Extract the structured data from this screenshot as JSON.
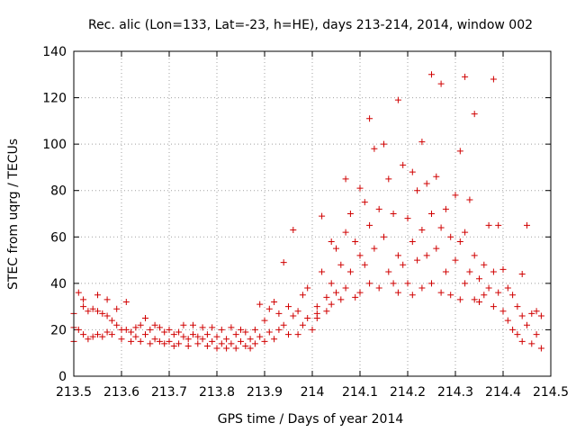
{
  "chart_data": {
    "type": "scatter",
    "title": "Rec. alic (Lon=133, Lat=-23, h=HE), days 213-214, 2014, window 002",
    "xlabel": "GPS time / Days of year 2014",
    "ylabel": "STEC from uqrg / TECUs",
    "xlim": [
      213.5,
      214.5
    ],
    "ylim": [
      0,
      140
    ],
    "xticks": [
      213.5,
      213.6,
      213.7,
      213.8,
      213.9,
      214,
      214.1,
      214.2,
      214.3,
      214.4,
      214.5
    ],
    "xtick_labels": [
      "213.5",
      "213.6",
      "213.7",
      "213.8",
      "213.9",
      "214",
      "214.1",
      "214.2",
      "214.3",
      "214.4",
      "214.5"
    ],
    "yticks": [
      0,
      20,
      40,
      60,
      80,
      100,
      120,
      140
    ],
    "ytick_labels": [
      "0",
      "20",
      "40",
      "60",
      "80",
      "100",
      "120",
      "140"
    ],
    "grid": true,
    "marker": "+",
    "marker_color": "#d00000",
    "series": [
      {
        "name": "STEC",
        "points": [
          [
            213.5,
            15
          ],
          [
            213.5,
            21
          ],
          [
            213.5,
            27
          ],
          [
            213.51,
            36
          ],
          [
            213.51,
            20
          ],
          [
            213.52,
            30
          ],
          [
            213.52,
            33
          ],
          [
            213.52,
            18
          ],
          [
            213.53,
            28
          ],
          [
            213.53,
            16
          ],
          [
            213.54,
            29
          ],
          [
            213.54,
            17
          ],
          [
            213.55,
            28
          ],
          [
            213.55,
            35
          ],
          [
            213.55,
            18
          ],
          [
            213.56,
            27
          ],
          [
            213.56,
            17
          ],
          [
            213.57,
            26
          ],
          [
            213.57,
            33
          ],
          [
            213.57,
            19
          ],
          [
            213.58,
            24
          ],
          [
            213.58,
            18
          ],
          [
            213.59,
            22
          ],
          [
            213.59,
            29
          ],
          [
            213.6,
            20
          ],
          [
            213.6,
            16
          ],
          [
            213.61,
            32
          ],
          [
            213.61,
            20
          ],
          [
            213.62,
            19
          ],
          [
            213.62,
            15
          ],
          [
            213.63,
            21
          ],
          [
            213.63,
            17
          ],
          [
            213.64,
            22
          ],
          [
            213.64,
            15
          ],
          [
            213.65,
            25
          ],
          [
            213.65,
            18
          ],
          [
            213.66,
            20
          ],
          [
            213.66,
            14
          ],
          [
            213.67,
            22
          ],
          [
            213.67,
            16
          ],
          [
            213.68,
            21
          ],
          [
            213.68,
            15
          ],
          [
            213.69,
            19
          ],
          [
            213.69,
            14
          ],
          [
            213.7,
            20
          ],
          [
            213.7,
            15
          ],
          [
            213.71,
            18
          ],
          [
            213.71,
            13
          ],
          [
            213.72,
            19
          ],
          [
            213.72,
            14
          ],
          [
            213.73,
            22
          ],
          [
            213.73,
            17
          ],
          [
            213.74,
            16
          ],
          [
            213.74,
            13
          ],
          [
            213.75,
            22
          ],
          [
            213.75,
            18
          ],
          [
            213.76,
            17
          ],
          [
            213.76,
            14
          ],
          [
            213.77,
            21
          ],
          [
            213.77,
            16
          ],
          [
            213.78,
            18
          ],
          [
            213.78,
            13
          ],
          [
            213.79,
            21
          ],
          [
            213.79,
            15
          ],
          [
            213.8,
            17
          ],
          [
            213.8,
            12
          ],
          [
            213.81,
            20
          ],
          [
            213.81,
            14
          ],
          [
            213.82,
            16
          ],
          [
            213.82,
            12
          ],
          [
            213.83,
            21
          ],
          [
            213.83,
            14
          ],
          [
            213.84,
            18
          ],
          [
            213.84,
            12
          ],
          [
            213.85,
            20
          ],
          [
            213.85,
            15
          ],
          [
            213.86,
            19
          ],
          [
            213.86,
            13
          ],
          [
            213.87,
            16
          ],
          [
            213.87,
            12
          ],
          [
            213.88,
            20
          ],
          [
            213.88,
            14
          ],
          [
            213.89,
            31
          ],
          [
            213.89,
            17
          ],
          [
            213.9,
            24
          ],
          [
            213.9,
            15
          ],
          [
            213.91,
            29
          ],
          [
            213.91,
            19
          ],
          [
            213.92,
            32
          ],
          [
            213.92,
            16
          ],
          [
            213.93,
            27
          ],
          [
            213.93,
            20
          ],
          [
            213.94,
            49
          ],
          [
            213.94,
            22
          ],
          [
            213.95,
            30
          ],
          [
            213.95,
            18
          ],
          [
            213.96,
            63
          ],
          [
            213.96,
            26
          ],
          [
            213.97,
            28
          ],
          [
            213.97,
            18
          ],
          [
            213.98,
            35
          ],
          [
            213.98,
            22
          ],
          [
            213.99,
            38
          ],
          [
            213.99,
            25
          ],
          [
            214.0,
            20
          ],
          [
            214.01,
            30
          ],
          [
            214.01,
            27
          ],
          [
            214.01,
            25
          ],
          [
            214.02,
            69
          ],
          [
            214.02,
            45
          ],
          [
            214.03,
            34
          ],
          [
            214.03,
            28
          ],
          [
            214.04,
            58
          ],
          [
            214.04,
            40
          ],
          [
            214.04,
            31
          ],
          [
            214.05,
            55
          ],
          [
            214.05,
            36
          ],
          [
            214.06,
            48
          ],
          [
            214.06,
            33
          ],
          [
            214.07,
            85
          ],
          [
            214.07,
            62
          ],
          [
            214.07,
            38
          ],
          [
            214.08,
            70
          ],
          [
            214.08,
            45
          ],
          [
            214.09,
            58
          ],
          [
            214.09,
            34
          ],
          [
            214.1,
            81
          ],
          [
            214.1,
            52
          ],
          [
            214.1,
            36
          ],
          [
            214.11,
            75
          ],
          [
            214.11,
            48
          ],
          [
            214.12,
            111
          ],
          [
            214.12,
            65
          ],
          [
            214.12,
            40
          ],
          [
            214.13,
            98
          ],
          [
            214.13,
            55
          ],
          [
            214.14,
            72
          ],
          [
            214.14,
            38
          ],
          [
            214.15,
            100
          ],
          [
            214.15,
            60
          ],
          [
            214.16,
            85
          ],
          [
            214.16,
            45
          ],
          [
            214.17,
            70
          ],
          [
            214.17,
            40
          ],
          [
            214.18,
            119
          ],
          [
            214.18,
            52
          ],
          [
            214.18,
            36
          ],
          [
            214.19,
            91
          ],
          [
            214.19,
            48
          ],
          [
            214.2,
            68
          ],
          [
            214.2,
            40
          ],
          [
            214.21,
            88
          ],
          [
            214.21,
            58
          ],
          [
            214.21,
            35
          ],
          [
            214.22,
            80
          ],
          [
            214.22,
            50
          ],
          [
            214.23,
            101
          ],
          [
            214.23,
            63
          ],
          [
            214.23,
            38
          ],
          [
            214.24,
            83
          ],
          [
            214.24,
            52
          ],
          [
            214.25,
            130
          ],
          [
            214.25,
            70
          ],
          [
            214.25,
            40
          ],
          [
            214.26,
            86
          ],
          [
            214.26,
            55
          ],
          [
            214.27,
            126
          ],
          [
            214.27,
            64
          ],
          [
            214.27,
            36
          ],
          [
            214.28,
            72
          ],
          [
            214.28,
            45
          ],
          [
            214.29,
            60
          ],
          [
            214.29,
            35
          ],
          [
            214.3,
            78
          ],
          [
            214.3,
            50
          ],
          [
            214.31,
            97
          ],
          [
            214.31,
            58
          ],
          [
            214.31,
            33
          ],
          [
            214.32,
            129
          ],
          [
            214.32,
            62
          ],
          [
            214.32,
            40
          ],
          [
            214.33,
            76
          ],
          [
            214.33,
            45
          ],
          [
            214.34,
            113
          ],
          [
            214.34,
            52
          ],
          [
            214.34,
            33
          ],
          [
            214.35,
            42
          ],
          [
            214.35,
            32
          ],
          [
            214.36,
            48
          ],
          [
            214.36,
            35
          ],
          [
            214.37,
            65
          ],
          [
            214.37,
            38
          ],
          [
            214.38,
            128
          ],
          [
            214.38,
            45
          ],
          [
            214.38,
            30
          ],
          [
            214.39,
            65
          ],
          [
            214.39,
            36
          ],
          [
            214.4,
            46
          ],
          [
            214.4,
            28
          ],
          [
            214.41,
            38
          ],
          [
            214.41,
            24
          ],
          [
            214.42,
            35
          ],
          [
            214.42,
            20
          ],
          [
            214.43,
            30
          ],
          [
            214.43,
            18
          ],
          [
            214.44,
            44
          ],
          [
            214.44,
            26
          ],
          [
            214.44,
            15
          ],
          [
            214.45,
            65
          ],
          [
            214.45,
            22
          ],
          [
            214.46,
            27
          ],
          [
            214.46,
            14
          ],
          [
            214.47,
            28
          ],
          [
            214.47,
            18
          ],
          [
            214.48,
            26
          ],
          [
            214.48,
            12
          ]
        ]
      }
    ]
  }
}
